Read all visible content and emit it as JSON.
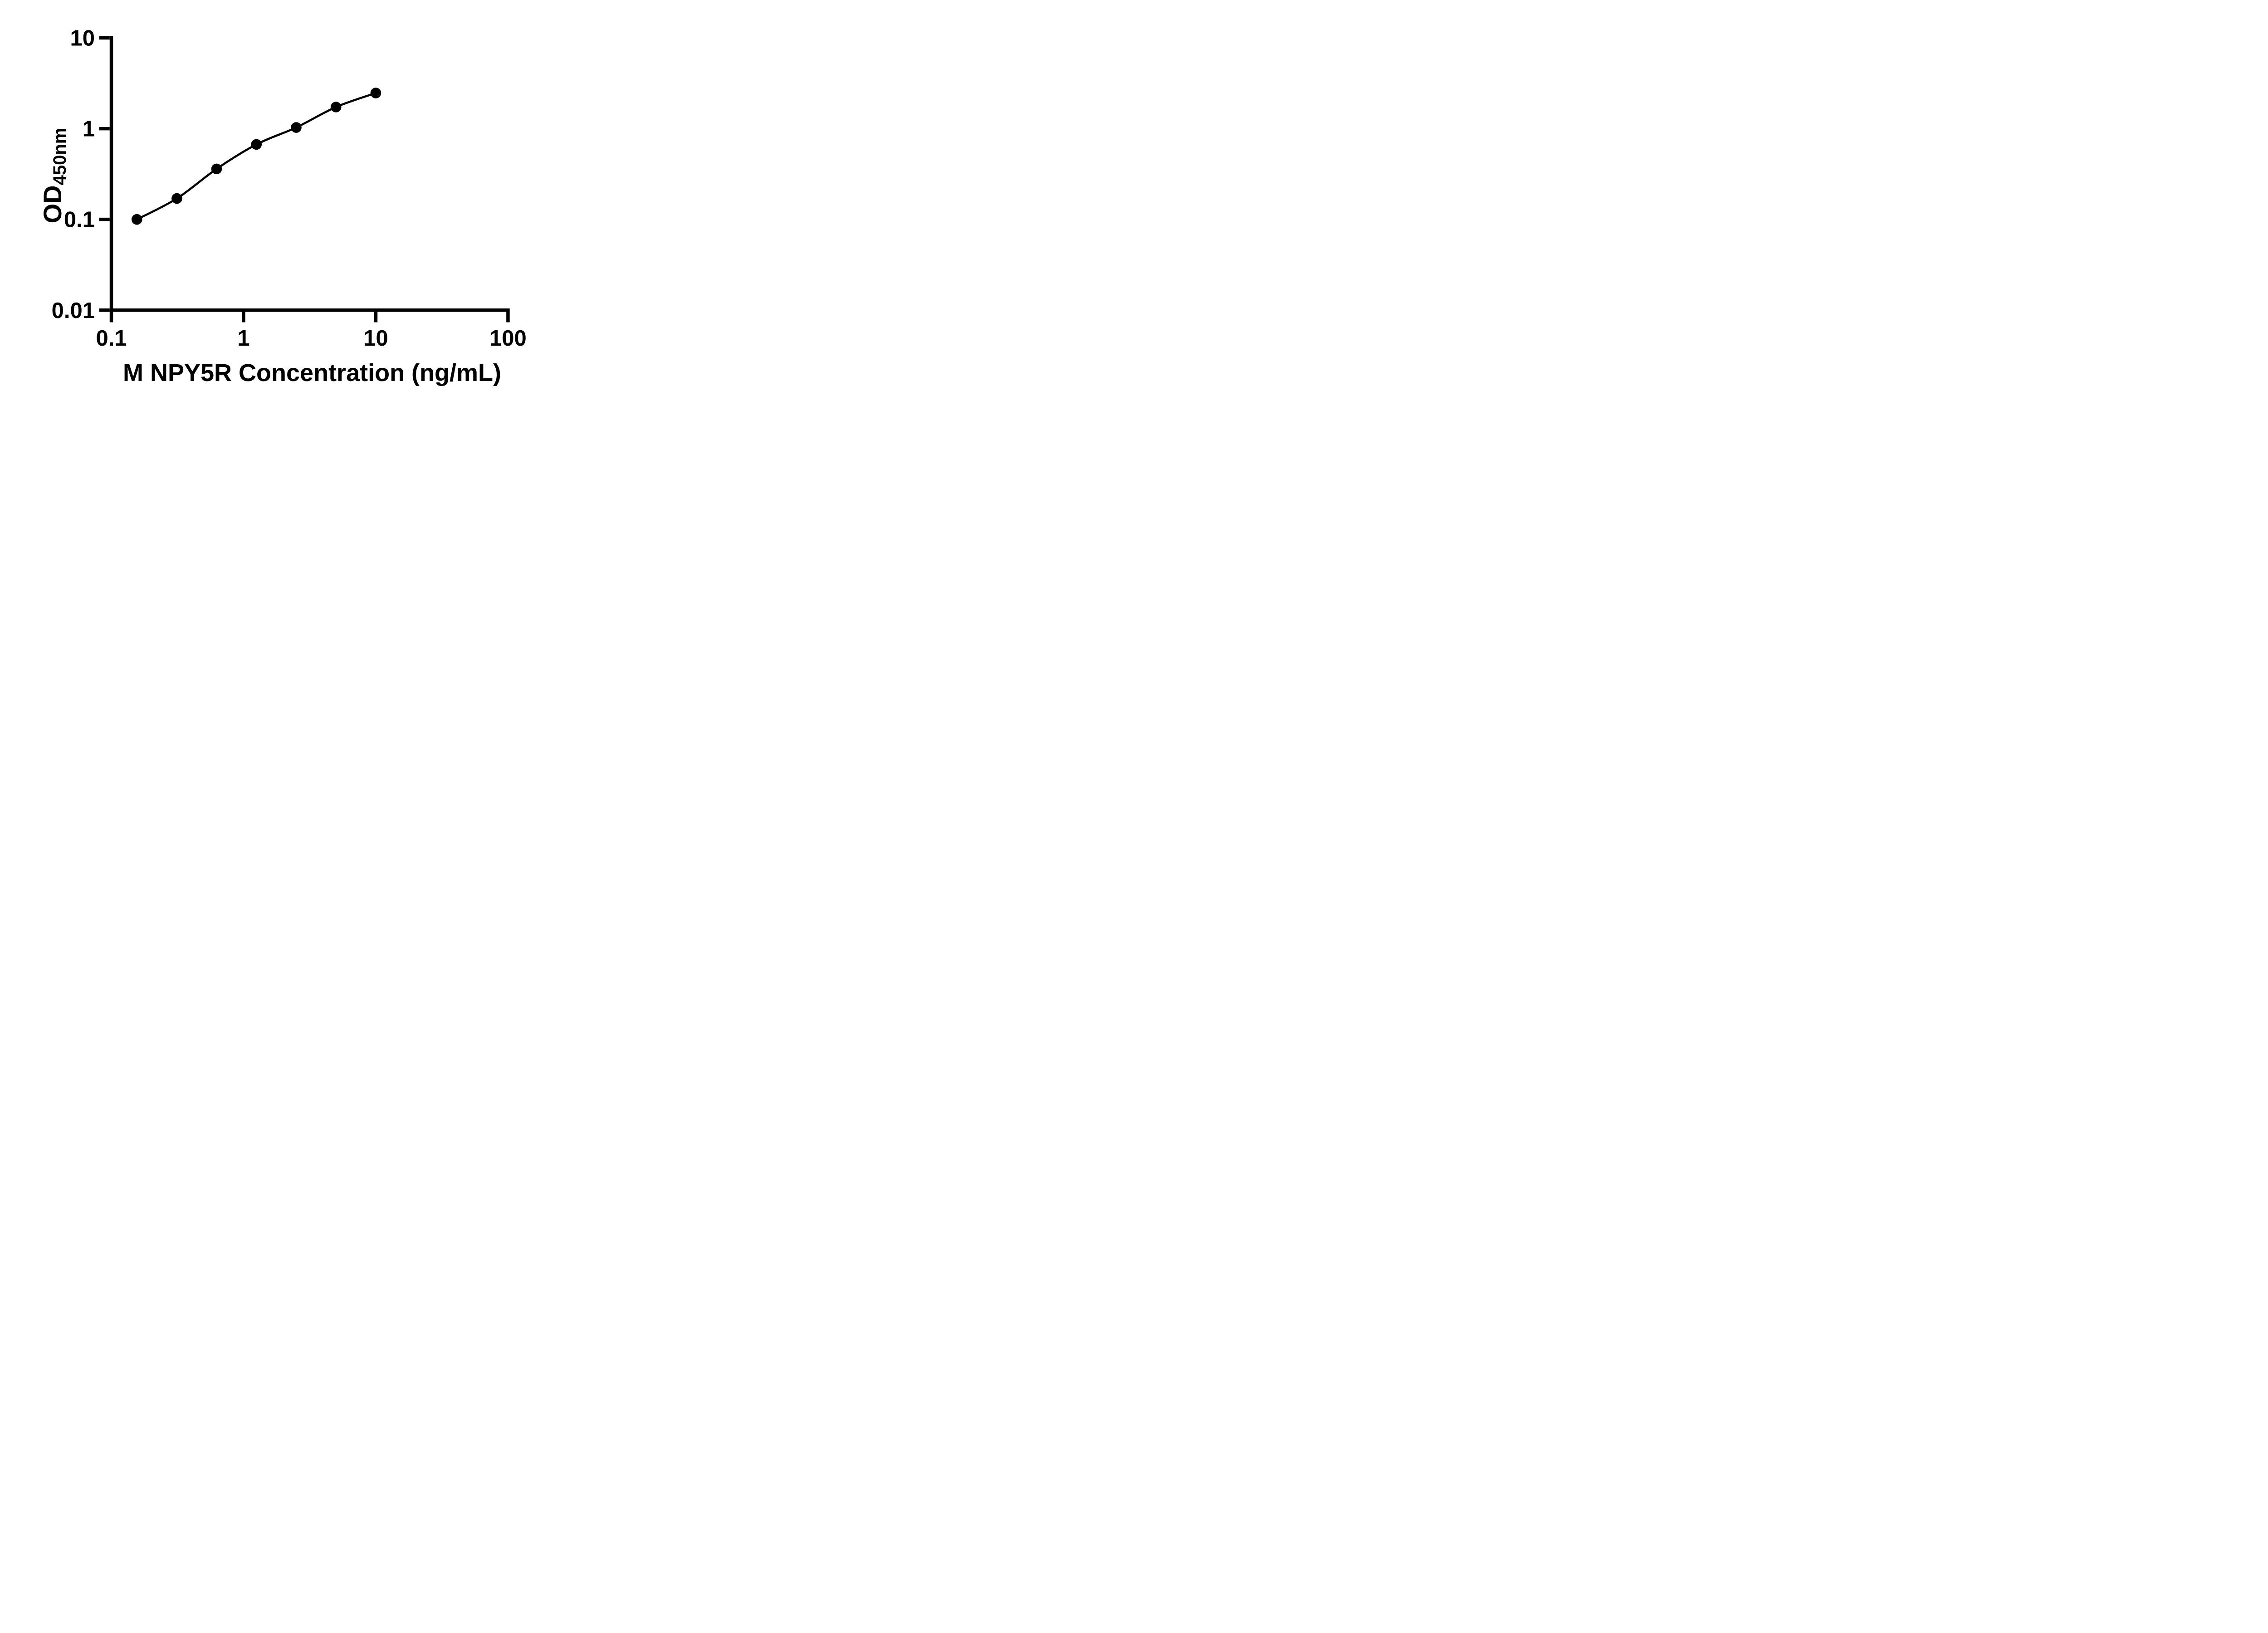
{
  "figure": {
    "background_color": "#ffffff",
    "ink_color": "#000000",
    "description_visible_text_only": true
  },
  "chart_data": {
    "type": "scatter",
    "subtype": "standard-curve-with-fitted-line",
    "title": "",
    "xlabel": "M NPY5R Concentration (ng/mL)",
    "ylabel": "OD450nm",
    "ylabel_main": "OD",
    "ylabel_sub": "450nm",
    "x_scale": "log",
    "y_scale": "log",
    "xlim": [
      0.1,
      100
    ],
    "ylim": [
      0.01,
      10
    ],
    "x_ticks": [
      {
        "value": 0.1,
        "label": "0.1"
      },
      {
        "value": 1,
        "label": "1"
      },
      {
        "value": 10,
        "label": "10"
      },
      {
        "value": 100,
        "label": "100"
      }
    ],
    "y_ticks": [
      {
        "value": 10,
        "label": "10"
      },
      {
        "value": 1,
        "label": "1"
      },
      {
        "value": 0.1,
        "label": "0.1"
      },
      {
        "value": 0.01,
        "label": "0.01"
      }
    ],
    "grid": false,
    "legend": "none",
    "marker_style": "filled-circle",
    "marker_color": "#000000",
    "line_color": "#000000",
    "series": [
      {
        "name": "standard-curve",
        "points": [
          {
            "concentration": 0.156,
            "od": 0.1
          },
          {
            "concentration": 0.313,
            "od": 0.17
          },
          {
            "concentration": 0.625,
            "od": 0.36
          },
          {
            "concentration": 1.25,
            "od": 0.67
          },
          {
            "concentration": 2.5,
            "od": 1.03
          },
          {
            "concentration": 5,
            "od": 1.73
          },
          {
            "concentration": 10,
            "od": 2.47
          }
        ],
        "fit_curve_through_points": true
      }
    ]
  }
}
